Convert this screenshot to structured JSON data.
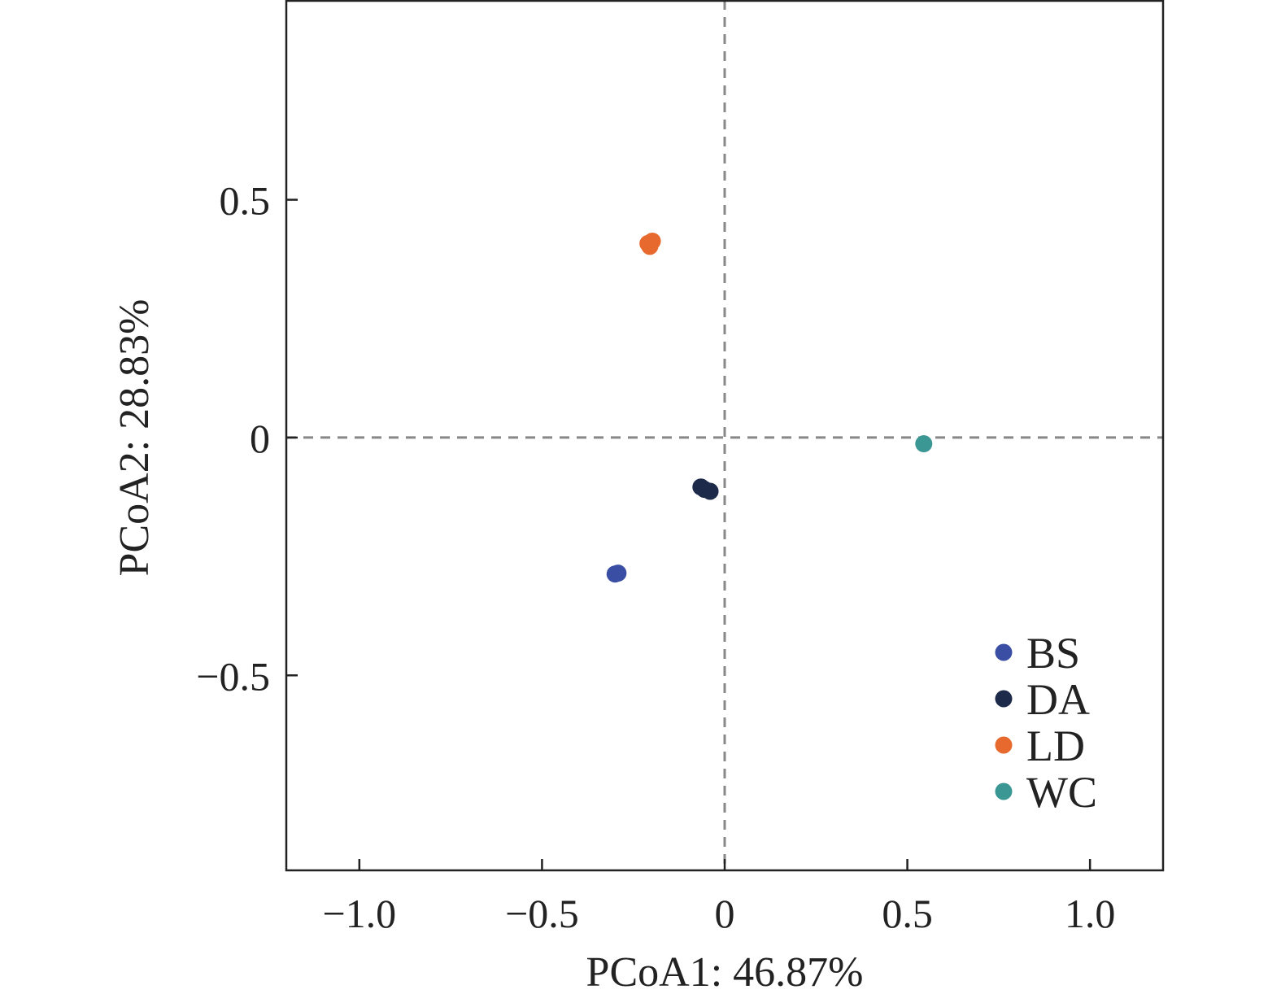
{
  "chart_data": {
    "type": "scatter",
    "title": "",
    "xlabel": "PCoA1: 46.87%",
    "ylabel": "PCoA2: 28.83%",
    "xlim": [
      -1.2,
      1.2
    ],
    "ylim": [
      -0.91,
      0.92
    ],
    "xticks": [
      {
        "value": -1.0,
        "label": "−1.0"
      },
      {
        "value": -0.5,
        "label": "−0.5"
      },
      {
        "value": 0,
        "label": "0"
      },
      {
        "value": 0.5,
        "label": "0.5"
      },
      {
        "value": 1.0,
        "label": "1.0"
      }
    ],
    "yticks": [
      {
        "value": 0.5,
        "label": "0.5"
      },
      {
        "value": 0,
        "label": "0"
      },
      {
        "value": -0.5,
        "label": "−0.5"
      }
    ],
    "reference_lines": {
      "x": 0,
      "y": 0,
      "style": "dashed",
      "color": "#888888"
    },
    "grid": false,
    "legend_position": "bottom-right",
    "series": [
      {
        "name": "BS",
        "color": "#3a4fa3",
        "points": [
          [
            -0.3,
            -0.287
          ],
          [
            -0.292,
            -0.285
          ]
        ]
      },
      {
        "name": "DA",
        "color": "#1e2a4a",
        "points": [
          [
            -0.065,
            -0.104
          ],
          [
            -0.055,
            -0.109
          ],
          [
            -0.04,
            -0.113
          ]
        ]
      },
      {
        "name": "LD",
        "color": "#e8692d",
        "points": [
          [
            -0.21,
            0.408
          ],
          [
            -0.198,
            0.413
          ],
          [
            -0.205,
            0.402
          ]
        ]
      },
      {
        "name": "WC",
        "color": "#3a9793",
        "points": [
          [
            0.545,
            -0.013
          ]
        ]
      }
    ]
  }
}
